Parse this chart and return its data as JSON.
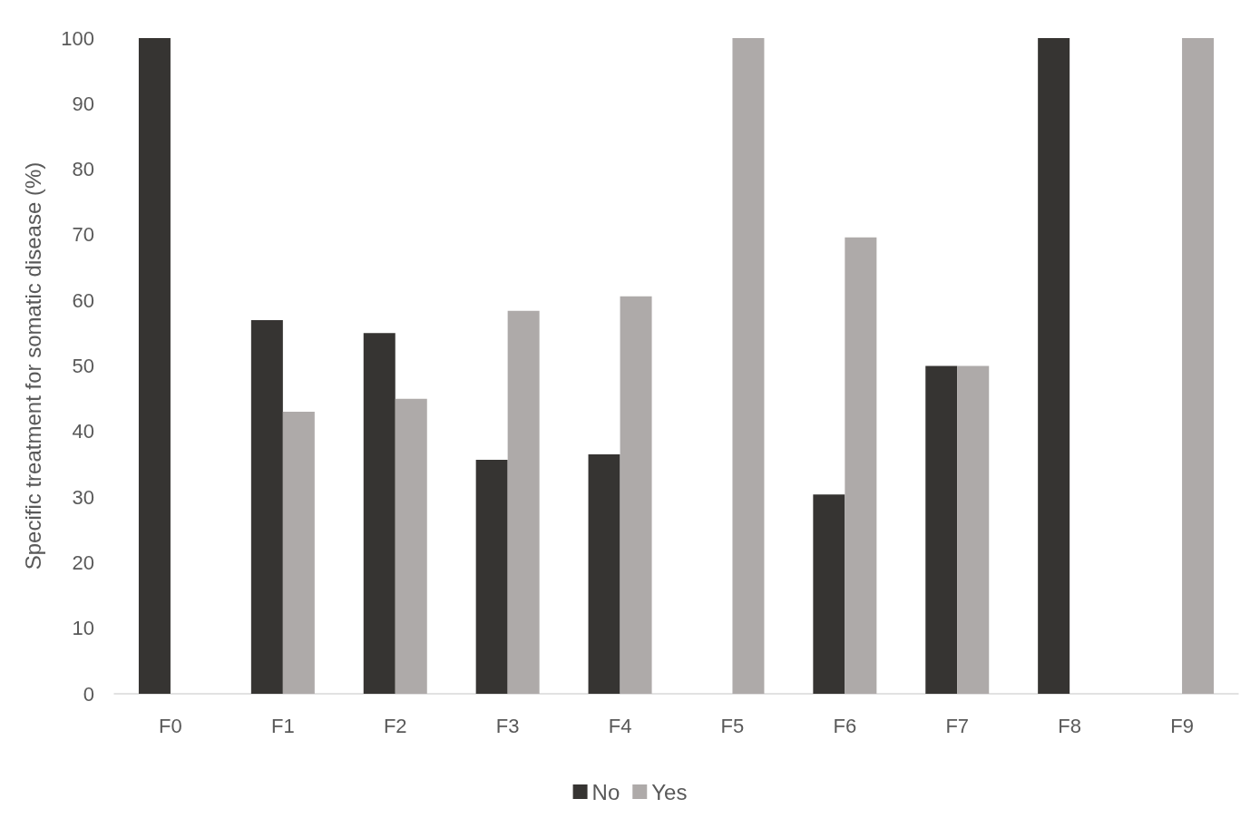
{
  "chart_data": {
    "type": "bar",
    "ylabel": "Specific treatment for somatic disease (%)",
    "categories": [
      "F0",
      "F1",
      "F2",
      "F3",
      "F4",
      "F5",
      "F6",
      "F7",
      "F8",
      "F9"
    ],
    "series": [
      {
        "name": "No",
        "color": "#363432",
        "values": [
          100,
          57,
          55,
          35.7,
          36.5,
          0,
          30.4,
          50,
          100,
          0
        ]
      },
      {
        "name": "Yes",
        "color": "#aeaaa9",
        "values": [
          0,
          43,
          45,
          58.4,
          60.6,
          100,
          69.6,
          50,
          0,
          100
        ]
      }
    ],
    "ylim": [
      0,
      100
    ],
    "yticks": [
      0,
      10,
      20,
      30,
      40,
      50,
      60,
      70,
      80,
      90,
      100
    ],
    "grid": false,
    "legend": "bottom"
  }
}
